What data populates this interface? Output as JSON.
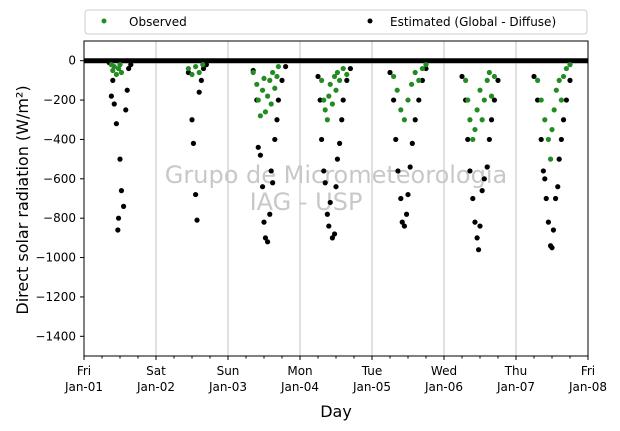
{
  "chart_data": {
    "type": "scatter",
    "xlabel": "Day",
    "ylabel": "Direct solar radiation (W/m²)",
    "watermark": [
      "Grupo de Micrometeorologia",
      "IAG - USP"
    ],
    "legend": {
      "placement": "top",
      "entries": [
        {
          "name": "Observed",
          "color": "#228b22"
        },
        {
          "name": "Estimated (Global - Diffuse)",
          "color": "#000000"
        }
      ]
    },
    "grid": {
      "vertical": true,
      "horizontal": false
    },
    "xlim": [
      0,
      7
    ],
    "ylim": [
      -1500,
      100
    ],
    "yticks": [
      0,
      -200,
      -400,
      -600,
      -800,
      -1000,
      -1200,
      -1400
    ],
    "xticks": [
      {
        "x": 0,
        "day": "Fri",
        "date": "Jan-01"
      },
      {
        "x": 1,
        "day": "Sat",
        "date": "Jan-02"
      },
      {
        "x": 2,
        "day": "Sun",
        "date": "Jan-03"
      },
      {
        "x": 3,
        "day": "Mon",
        "date": "Jan-04"
      },
      {
        "x": 4,
        "day": "Tue",
        "date": "Jan-05"
      },
      {
        "x": 5,
        "day": "Wed",
        "date": "Jan-06"
      },
      {
        "x": 6,
        "day": "Thu",
        "date": "Jan-07"
      },
      {
        "x": 7,
        "day": "Fri",
        "date": "Jan-08"
      }
    ],
    "series": [
      {
        "name": "Observed",
        "color": "#228b22",
        "points": [
          [
            0.38,
            -20
          ],
          [
            0.4,
            -50
          ],
          [
            0.42,
            -30
          ],
          [
            0.45,
            -70
          ],
          [
            0.48,
            -40
          ],
          [
            0.5,
            -20
          ],
          [
            0.52,
            -60
          ],
          [
            1.45,
            -40
          ],
          [
            1.5,
            -70
          ],
          [
            1.55,
            -30
          ],
          [
            1.6,
            -60
          ],
          [
            1.65,
            -20
          ],
          [
            2.35,
            -60
          ],
          [
            2.4,
            -120
          ],
          [
            2.42,
            -200
          ],
          [
            2.45,
            -280
          ],
          [
            2.48,
            -150
          ],
          [
            2.5,
            -90
          ],
          [
            2.52,
            -260
          ],
          [
            2.55,
            -180
          ],
          [
            2.58,
            -100
          ],
          [
            2.6,
            -220
          ],
          [
            2.62,
            -60
          ],
          [
            2.65,
            -140
          ],
          [
            2.68,
            -80
          ],
          [
            2.7,
            -30
          ],
          [
            3.3,
            -100
          ],
          [
            3.33,
            -200
          ],
          [
            3.35,
            -250
          ],
          [
            3.38,
            -300
          ],
          [
            3.4,
            -180
          ],
          [
            3.42,
            -120
          ],
          [
            3.45,
            -220
          ],
          [
            3.48,
            -80
          ],
          [
            3.5,
            -150
          ],
          [
            3.52,
            -60
          ],
          [
            3.55,
            -100
          ],
          [
            3.6,
            -40
          ],
          [
            3.65,
            -70
          ],
          [
            4.3,
            -80
          ],
          [
            4.35,
            -150
          ],
          [
            4.4,
            -250
          ],
          [
            4.45,
            -300
          ],
          [
            4.5,
            -200
          ],
          [
            4.55,
            -120
          ],
          [
            4.6,
            -60
          ],
          [
            4.65,
            -100
          ],
          [
            4.7,
            -40
          ],
          [
            4.75,
            -20
          ],
          [
            5.3,
            -100
          ],
          [
            5.33,
            -200
          ],
          [
            5.36,
            -300
          ],
          [
            5.4,
            -400
          ],
          [
            5.43,
            -350
          ],
          [
            5.46,
            -250
          ],
          [
            5.5,
            -150
          ],
          [
            5.53,
            -300
          ],
          [
            5.56,
            -200
          ],
          [
            5.6,
            -100
          ],
          [
            5.63,
            -60
          ],
          [
            5.66,
            -180
          ],
          [
            5.7,
            -80
          ],
          [
            6.3,
            -100
          ],
          [
            6.35,
            -200
          ],
          [
            6.4,
            -300
          ],
          [
            6.45,
            -400
          ],
          [
            6.48,
            -500
          ],
          [
            6.5,
            -350
          ],
          [
            6.53,
            -250
          ],
          [
            6.56,
            -150
          ],
          [
            6.6,
            -100
          ],
          [
            6.63,
            -200
          ],
          [
            6.66,
            -80
          ],
          [
            6.7,
            -40
          ],
          [
            6.75,
            -20
          ]
        ]
      },
      {
        "name": "Estimated (Global - Diffuse)",
        "color": "#000000",
        "points": [
          [
            0.35,
            -10
          ],
          [
            0.38,
            -180
          ],
          [
            0.4,
            -100
          ],
          [
            0.42,
            -220
          ],
          [
            0.45,
            -320
          ],
          [
            0.47,
            -860
          ],
          [
            0.48,
            -800
          ],
          [
            0.5,
            -500
          ],
          [
            0.52,
            -660
          ],
          [
            0.55,
            -740
          ],
          [
            0.58,
            -250
          ],
          [
            0.6,
            -150
          ],
          [
            0.62,
            -40
          ],
          [
            0.65,
            -20
          ],
          [
            1.45,
            -60
          ],
          [
            1.5,
            -300
          ],
          [
            1.52,
            -420
          ],
          [
            1.55,
            -680
          ],
          [
            1.57,
            -810
          ],
          [
            1.6,
            -160
          ],
          [
            1.63,
            -100
          ],
          [
            1.66,
            -40
          ],
          [
            1.7,
            -20
          ],
          [
            2.35,
            -50
          ],
          [
            2.4,
            -200
          ],
          [
            2.42,
            -440
          ],
          [
            2.45,
            -480
          ],
          [
            2.48,
            -640
          ],
          [
            2.5,
            -820
          ],
          [
            2.52,
            -900
          ],
          [
            2.55,
            -920
          ],
          [
            2.58,
            -780
          ],
          [
            2.6,
            -560
          ],
          [
            2.62,
            -620
          ],
          [
            2.65,
            -400
          ],
          [
            2.68,
            -300
          ],
          [
            2.7,
            -200
          ],
          [
            2.75,
            -100
          ],
          [
            2.8,
            -30
          ],
          [
            3.25,
            -80
          ],
          [
            3.28,
            -200
          ],
          [
            3.3,
            -400
          ],
          [
            3.33,
            -560
          ],
          [
            3.35,
            -620
          ],
          [
            3.38,
            -780
          ],
          [
            3.4,
            -840
          ],
          [
            3.42,
            -720
          ],
          [
            3.45,
            -900
          ],
          [
            3.48,
            -880
          ],
          [
            3.5,
            -640
          ],
          [
            3.52,
            -500
          ],
          [
            3.55,
            -420
          ],
          [
            3.58,
            -300
          ],
          [
            3.6,
            -200
          ],
          [
            3.65,
            -100
          ],
          [
            3.7,
            -40
          ],
          [
            4.25,
            -60
          ],
          [
            4.3,
            -200
          ],
          [
            4.33,
            -400
          ],
          [
            4.36,
            -560
          ],
          [
            4.4,
            -700
          ],
          [
            4.42,
            -820
          ],
          [
            4.45,
            -840
          ],
          [
            4.48,
            -780
          ],
          [
            4.5,
            -680
          ],
          [
            4.53,
            -540
          ],
          [
            4.56,
            -420
          ],
          [
            4.6,
            -300
          ],
          [
            4.65,
            -200
          ],
          [
            4.7,
            -100
          ],
          [
            4.75,
            -40
          ],
          [
            5.25,
            -80
          ],
          [
            5.3,
            -200
          ],
          [
            5.33,
            -400
          ],
          [
            5.36,
            -560
          ],
          [
            5.4,
            -700
          ],
          [
            5.43,
            -820
          ],
          [
            5.46,
            -900
          ],
          [
            5.48,
            -960
          ],
          [
            5.5,
            -840
          ],
          [
            5.53,
            -660
          ],
          [
            5.56,
            -600
          ],
          [
            5.6,
            -540
          ],
          [
            5.63,
            -400
          ],
          [
            5.66,
            -300
          ],
          [
            5.7,
            -200
          ],
          [
            5.75,
            -100
          ],
          [
            6.25,
            -80
          ],
          [
            6.3,
            -200
          ],
          [
            6.35,
            -400
          ],
          [
            6.38,
            -560
          ],
          [
            6.4,
            -600
          ],
          [
            6.42,
            -700
          ],
          [
            6.45,
            -820
          ],
          [
            6.48,
            -940
          ],
          [
            6.5,
            -950
          ],
          [
            6.52,
            -860
          ],
          [
            6.55,
            -700
          ],
          [
            6.58,
            -640
          ],
          [
            6.6,
            -500
          ],
          [
            6.63,
            -400
          ],
          [
            6.66,
            -300
          ],
          [
            6.7,
            -200
          ],
          [
            6.75,
            -100
          ]
        ]
      }
    ]
  }
}
